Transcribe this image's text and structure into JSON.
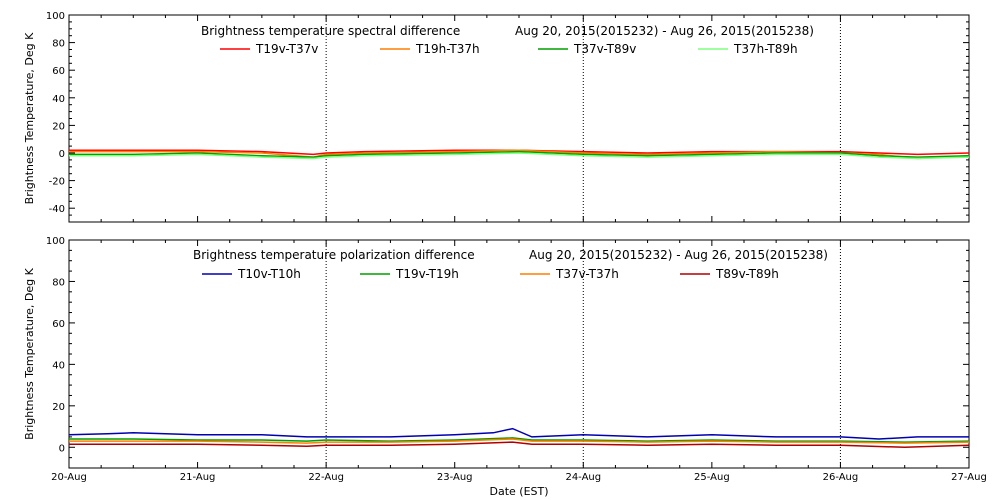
{
  "chart_data": [
    {
      "type": "line",
      "title": "Brightness temperature spectral difference",
      "date_range": "Aug 20, 2015(2015232) - Aug 26, 2015(2015238)",
      "ylabel": "Brightness Temperature, Deg K",
      "xlabel": "",
      "ylim": [
        -50,
        100
      ],
      "yticks": [
        -40,
        -20,
        0,
        20,
        40,
        60,
        80,
        100
      ],
      "xlim": [
        0,
        7
      ],
      "vlines": [
        2,
        4,
        6
      ],
      "legend_position": "top",
      "series": [
        {
          "name": "T19v-T37v",
          "color": "#ff0000",
          "x": [
            0,
            0.5,
            1,
            1.5,
            1.9,
            2.0,
            2.3,
            3,
            3.5,
            4,
            4.5,
            5,
            5.5,
            6,
            6.3,
            6.6,
            7
          ],
          "y": [
            2,
            2,
            2,
            1,
            -1,
            0,
            1,
            2,
            2,
            1,
            0,
            1,
            1,
            1,
            0,
            -1,
            0
          ]
        },
        {
          "name": "T19h-T37h",
          "color": "#ff7f00",
          "x": [
            0,
            0.5,
            1,
            1.5,
            1.9,
            2.0,
            2.3,
            3,
            3.5,
            4,
            4.5,
            5,
            5.5,
            6,
            6.3,
            6.6,
            7
          ],
          "y": [
            1,
            1,
            1,
            0,
            -3,
            -1,
            0,
            1,
            2,
            0,
            -1,
            0,
            1,
            0,
            -1,
            -4,
            -2
          ]
        },
        {
          "name": "T37v-T89v",
          "color": "#00a000",
          "x": [
            0,
            0.5,
            1,
            1.5,
            1.9,
            2.0,
            2.3,
            3,
            3.5,
            4,
            4.5,
            5,
            5.5,
            6,
            6.3,
            6.6,
            7
          ],
          "y": [
            -1,
            -1,
            0,
            -2,
            -3,
            -2,
            -1,
            0,
            1,
            -1,
            -2,
            -1,
            0,
            0,
            -2,
            -3,
            -2
          ]
        },
        {
          "name": "T37h-T89h",
          "color": "#7fff7f",
          "x": [
            0,
            0.5,
            1,
            1.5,
            1.9,
            2.0,
            2.3,
            3,
            3.5,
            4,
            4.5,
            5,
            5.5,
            6,
            6.3,
            6.6,
            7
          ],
          "y": [
            -2,
            -2,
            -1,
            -3,
            -4,
            -3,
            -2,
            -1,
            0,
            -2,
            -3,
            -2,
            -1,
            -1,
            -3,
            -4,
            -3
          ]
        }
      ]
    },
    {
      "type": "line",
      "title": "Brightness temperature polarization difference",
      "date_range": "Aug 20, 2015(2015232) - Aug 26, 2015(2015238)",
      "ylabel": "Brightness Temperature, Deg K",
      "xlabel": "Date (EST)",
      "ylim": [
        -10,
        100
      ],
      "yticks": [
        0,
        20,
        40,
        60,
        80,
        100
      ],
      "xlim": [
        0,
        7
      ],
      "xticks": [
        "20-Aug",
        "21-Aug",
        "22-Aug",
        "23-Aug",
        "24-Aug",
        "25-Aug",
        "26-Aug",
        "27-Aug"
      ],
      "vlines": [
        2,
        4,
        6
      ],
      "legend_position": "top",
      "series": [
        {
          "name": "T10v-T10h",
          "color": "#0000b0",
          "x": [
            0,
            0.3,
            0.5,
            1,
            1.5,
            1.85,
            2,
            2.5,
            3,
            3.3,
            3.45,
            3.6,
            4,
            4.5,
            5,
            5.5,
            6,
            6.3,
            6.6,
            7
          ],
          "y": [
            6,
            6.5,
            7,
            6,
            6,
            5,
            5,
            5,
            6,
            7,
            9,
            5,
            6,
            5,
            6,
            5,
            5,
            4,
            5,
            5
          ]
        },
        {
          "name": "T19v-T19h",
          "color": "#00a000",
          "x": [
            0,
            0.5,
            1,
            1.5,
            1.85,
            2,
            2.5,
            3,
            3.45,
            3.6,
            4,
            4.5,
            5,
            5.5,
            6,
            6.5,
            7
          ],
          "y": [
            4,
            4,
            3.5,
            3.5,
            3,
            3.5,
            3,
            3.5,
            4.5,
            3.5,
            3.5,
            3,
            3.5,
            3,
            3,
            2.5,
            3
          ]
        },
        {
          "name": "T37v-T37h",
          "color": "#ff7f00",
          "x": [
            0,
            0.5,
            1,
            1.5,
            1.85,
            2,
            2.5,
            3,
            3.45,
            3.6,
            4,
            4.5,
            5,
            5.5,
            6,
            6.5,
            7
          ],
          "y": [
            3,
            3,
            3,
            2.5,
            2,
            2.5,
            2.5,
            3,
            4,
            3,
            3,
            2.5,
            3,
            2.5,
            2.5,
            2,
            2.5
          ]
        },
        {
          "name": "T89v-T89h",
          "color": "#b00000",
          "x": [
            0,
            0.5,
            1,
            1.5,
            1.85,
            2,
            2.5,
            3,
            3.45,
            3.6,
            4,
            4.5,
            5,
            5.5,
            6,
            6.5,
            7
          ],
          "y": [
            1.5,
            1.5,
            1.5,
            1,
            0.5,
            1,
            1,
            1.5,
            2.5,
            1.5,
            1.5,
            1,
            1.5,
            1,
            1,
            0,
            1
          ]
        }
      ]
    }
  ]
}
